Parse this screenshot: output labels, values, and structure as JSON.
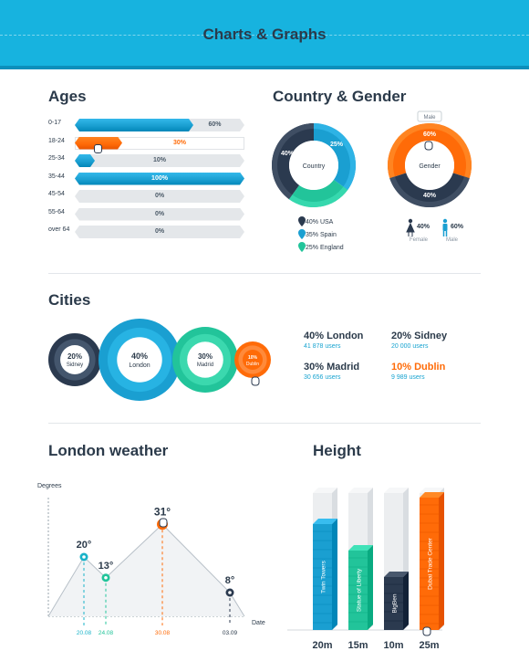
{
  "header": {
    "title": "Charts & Graphs"
  },
  "colors": {
    "blue": "#1a9fd1",
    "orange": "#ff6b08",
    "green": "#22c49a",
    "navy": "#2b3a4f",
    "gray": "#e4e7ea",
    "header": "#17b3df"
  },
  "ages": {
    "title": "Ages",
    "rows": [
      {
        "label": "0-17",
        "pct_text": "60%",
        "value": 60,
        "color": "#1a9fd1"
      },
      {
        "label": "18-24",
        "pct_text": "30%",
        "value": 30,
        "color": "#ff6b08"
      },
      {
        "label": "25-34",
        "pct_text": "10%",
        "value": 10,
        "color": "#1a9fd1"
      },
      {
        "label": "35-44",
        "pct_text": "100%",
        "value": 100,
        "color": "#1a9fd1"
      },
      {
        "label": "45-54",
        "pct_text": "0%",
        "value": 0,
        "color": "#1a9fd1"
      },
      {
        "label": "55-64",
        "pct_text": "0%",
        "value": 0,
        "color": "#1a9fd1"
      },
      {
        "label": "over 64",
        "pct_text": "0%",
        "value": 0,
        "color": "#1a9fd1"
      }
    ]
  },
  "country_gender": {
    "title": "Country & Gender",
    "country": {
      "center": "Country",
      "slices": [
        {
          "label": "40%",
          "value": 40,
          "color": "#2b3a4f"
        },
        {
          "label": "35%",
          "value": 35,
          "color": "#1a9fd1"
        },
        {
          "label": "25%",
          "value": 25,
          "color": "#22c49a"
        }
      ],
      "legend": [
        "40% USA",
        "35% Spain",
        "25% England"
      ]
    },
    "gender": {
      "center": "Gender",
      "tooltip": "Male",
      "slices": [
        {
          "label": "60%",
          "value": 60,
          "color": "#ff6b08"
        },
        {
          "label": "40%",
          "value": 40,
          "color": "#2b3a4f"
        }
      ],
      "female_pct": "40%",
      "female_label": "Female",
      "male_pct": "60%",
      "male_label": "Male"
    }
  },
  "cities": {
    "title": "Cities",
    "bubbles": [
      {
        "pct": "20%",
        "name": "Sidney"
      },
      {
        "pct": "40%",
        "name": "London"
      },
      {
        "pct": "30%",
        "name": "Madrid"
      },
      {
        "pct": "10%",
        "name": "Dublin"
      }
    ],
    "stats": [
      {
        "head": "40% London",
        "sub": "41 878 users"
      },
      {
        "head": "20% Sidney",
        "sub": "20 000 users"
      },
      {
        "head": "30% Madrid",
        "sub": "30 656 users"
      },
      {
        "head": "10% Dublin",
        "sub": "9 989 users"
      }
    ]
  },
  "chart_data": [
    {
      "type": "line",
      "title": "London weather",
      "ylabel": "Degrees",
      "xlabel": "Date",
      "x": [
        "20.08",
        "24.08",
        "30.08",
        "03.09"
      ],
      "values": [
        20,
        13,
        31,
        8
      ],
      "point_labels": [
        "20°",
        "13°",
        "31°",
        "8°"
      ],
      "ylim": [
        0,
        40
      ]
    },
    {
      "type": "bar",
      "title": "Height",
      "categories": [
        "Twin Towers",
        "Statue of Liberty",
        "BigBen",
        "Dubai Trade Center"
      ],
      "values": [
        20,
        15,
        10,
        25
      ],
      "value_labels": [
        "20m",
        "15m",
        "10m",
        "25m"
      ],
      "ylim": [
        0,
        25
      ]
    }
  ]
}
